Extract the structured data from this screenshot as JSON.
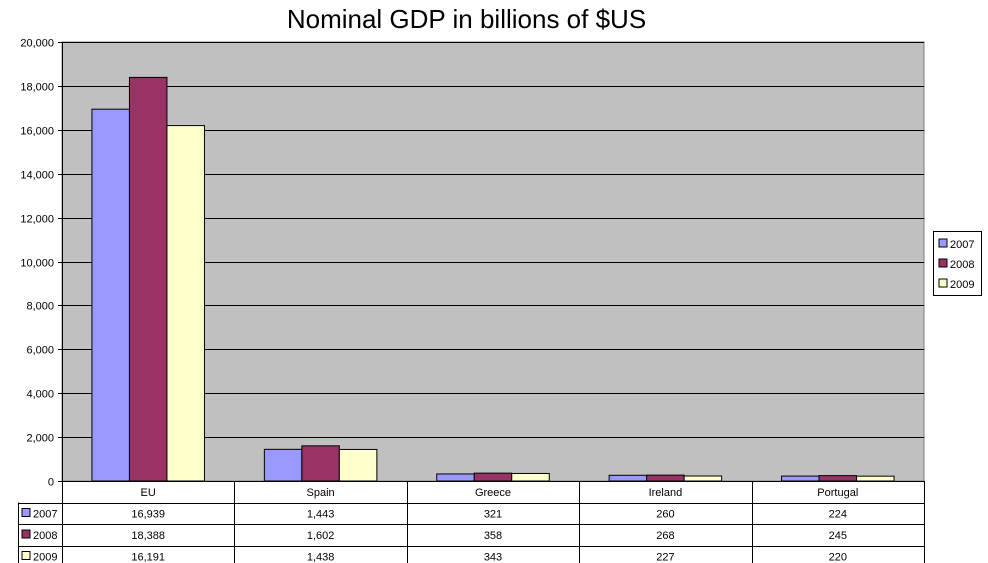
{
  "chart_data": {
    "type": "bar",
    "title": "Nominal GDP in billions of $US",
    "categories": [
      "EU",
      "Spain",
      "Greece",
      "Ireland",
      "Portugal"
    ],
    "series": [
      {
        "name": "2007",
        "values": [
          16939,
          1443,
          321,
          260,
          224
        ],
        "labels": [
          "16,939",
          "1,443",
          "321",
          "260",
          "224"
        ],
        "color": "#9999ff"
      },
      {
        "name": "2008",
        "values": [
          18388,
          1602,
          358,
          268,
          245
        ],
        "labels": [
          "18,388",
          "1,602",
          "358",
          "268",
          "245"
        ],
        "color": "#993366"
      },
      {
        "name": "2009",
        "values": [
          16191,
          1438,
          343,
          227,
          220
        ],
        "labels": [
          "16,191",
          "1,438",
          "343",
          "227",
          "220"
        ],
        "color": "#ffffcc"
      }
    ],
    "yticks": [
      "0",
      "2,000",
      "4,000",
      "6,000",
      "8,000",
      "10,000",
      "12,000",
      "14,000",
      "16,000",
      "18,000",
      "20,000"
    ],
    "ylim": [
      0,
      20000
    ],
    "grid": true,
    "plot_background": "#c0c0c0",
    "legend_position": "right",
    "data_table": true
  }
}
